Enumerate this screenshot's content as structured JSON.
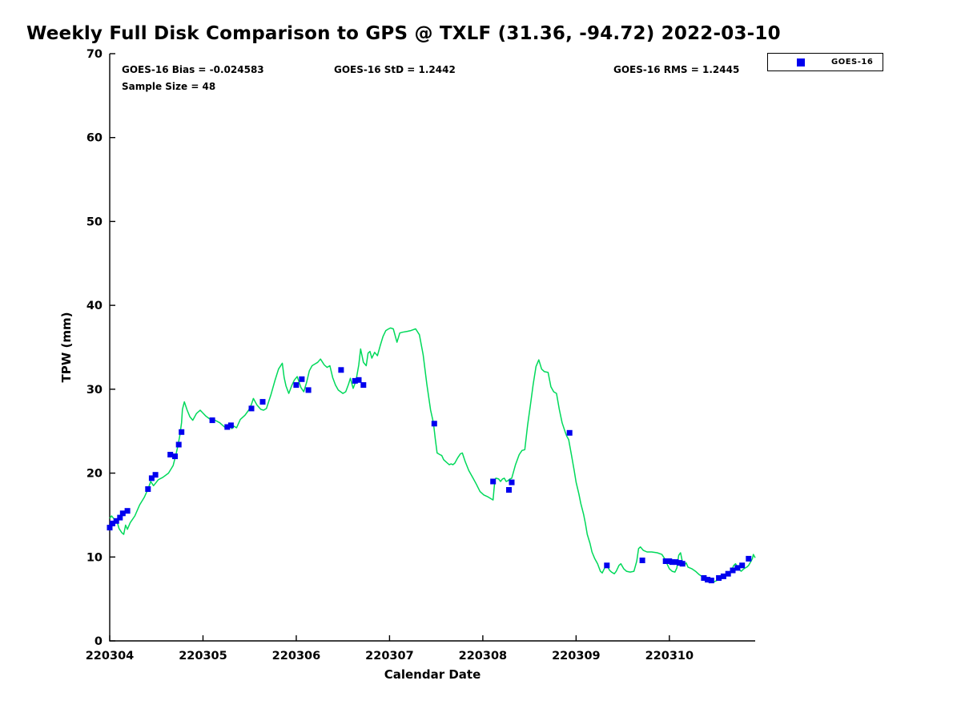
{
  "chart": {
    "stats": {
      "bias_label": "GOES-16 Bias = -0.024583",
      "std_label": "GOES-16 StD = 1.2442",
      "rms_label": "GOES-16 RMS = 1.2445",
      "sample_label": "Sample Size = 48"
    }
  },
  "chart_data": {
    "type": "line",
    "title": "Weekly Full Disk Comparison to GPS @ TXLF (31.36, -94.72) 2022-03-10",
    "xlabel": "Calendar Date",
    "ylabel": "TPW (mm)",
    "x_tick_labels": [
      "220304",
      "220305",
      "220306",
      "220307",
      "220308",
      "220309",
      "220310"
    ],
    "y_ticks": [
      0,
      10,
      20,
      30,
      40,
      50,
      60,
      70
    ],
    "ylim": [
      0,
      70
    ],
    "xlim": [
      0,
      6.92
    ],
    "x_unit": "days since 220304",
    "grid": false,
    "background": "#ffffff",
    "axis_color": "#000000",
    "stats": {
      "goes16_bias": -0.024583,
      "goes16_std": 1.2442,
      "goes16_rms": 1.2445,
      "sample_size": 48
    },
    "legend": {
      "position": "top-right",
      "entries": [
        {
          "label": "GOES-16",
          "marker": "square",
          "color": "#0000EE"
        }
      ]
    },
    "series": [
      {
        "name": "GPS",
        "type": "line",
        "color": "#00D95A",
        "points": [
          [
            0.0,
            14.6
          ],
          [
            0.02,
            14.9
          ],
          [
            0.05,
            14.5
          ],
          [
            0.08,
            14.2
          ],
          [
            0.1,
            13.4
          ],
          [
            0.13,
            12.9
          ],
          [
            0.15,
            12.7
          ],
          [
            0.17,
            13.8
          ],
          [
            0.19,
            13.3
          ],
          [
            0.22,
            14.1
          ],
          [
            0.27,
            14.9
          ],
          [
            0.32,
            16.2
          ],
          [
            0.37,
            17.1
          ],
          [
            0.41,
            18.1
          ],
          [
            0.44,
            19.0
          ],
          [
            0.47,
            18.5
          ],
          [
            0.52,
            19.2
          ],
          [
            0.57,
            19.5
          ],
          [
            0.63,
            20.0
          ],
          [
            0.68,
            20.9
          ],
          [
            0.71,
            22.2
          ],
          [
            0.73,
            23.2
          ],
          [
            0.75,
            24.4
          ],
          [
            0.77,
            26.0
          ],
          [
            0.78,
            27.6
          ],
          [
            0.8,
            28.5
          ],
          [
            0.83,
            27.5
          ],
          [
            0.86,
            26.7
          ],
          [
            0.89,
            26.3
          ],
          [
            0.93,
            27.1
          ],
          [
            0.97,
            27.5
          ],
          [
            1.03,
            26.8
          ],
          [
            1.08,
            26.4
          ],
          [
            1.13,
            26.3
          ],
          [
            1.18,
            26.0
          ],
          [
            1.23,
            25.5
          ],
          [
            1.27,
            25.3
          ],
          [
            1.29,
            25.7
          ],
          [
            1.31,
            25.3
          ],
          [
            1.33,
            25.6
          ],
          [
            1.36,
            25.4
          ],
          [
            1.4,
            26.4
          ],
          [
            1.45,
            26.9
          ],
          [
            1.49,
            27.5
          ],
          [
            1.52,
            28.2
          ],
          [
            1.54,
            28.9
          ],
          [
            1.58,
            28.1
          ],
          [
            1.62,
            27.6
          ],
          [
            1.65,
            27.5
          ],
          [
            1.68,
            27.7
          ],
          [
            1.73,
            29.4
          ],
          [
            1.77,
            31.0
          ],
          [
            1.81,
            32.4
          ],
          [
            1.85,
            33.1
          ],
          [
            1.87,
            31.4
          ],
          [
            1.89,
            30.4
          ],
          [
            1.92,
            29.5
          ],
          [
            1.95,
            30.4
          ],
          [
            1.98,
            31.1
          ],
          [
            2.01,
            31.5
          ],
          [
            2.05,
            30.2
          ],
          [
            2.08,
            29.7
          ],
          [
            2.11,
            30.8
          ],
          [
            2.14,
            32.2
          ],
          [
            2.17,
            32.8
          ],
          [
            2.2,
            33.0
          ],
          [
            2.23,
            33.2
          ],
          [
            2.26,
            33.6
          ],
          [
            2.3,
            32.9
          ],
          [
            2.33,
            32.6
          ],
          [
            2.36,
            32.8
          ],
          [
            2.39,
            31.4
          ],
          [
            2.42,
            30.5
          ],
          [
            2.45,
            29.9
          ],
          [
            2.5,
            29.5
          ],
          [
            2.53,
            29.7
          ],
          [
            2.56,
            30.6
          ],
          [
            2.58,
            31.3
          ],
          [
            2.61,
            30.1
          ],
          [
            2.64,
            31.0
          ],
          [
            2.67,
            32.9
          ],
          [
            2.69,
            34.8
          ],
          [
            2.72,
            33.2
          ],
          [
            2.75,
            32.8
          ],
          [
            2.77,
            34.3
          ],
          [
            2.79,
            34.5
          ],
          [
            2.81,
            33.7
          ],
          [
            2.84,
            34.4
          ],
          [
            2.87,
            34.0
          ],
          [
            2.9,
            35.2
          ],
          [
            2.93,
            36.3
          ],
          [
            2.96,
            37.0
          ],
          [
            2.99,
            37.2
          ],
          [
            3.01,
            37.3
          ],
          [
            3.04,
            37.2
          ],
          [
            3.08,
            35.6
          ],
          [
            3.11,
            36.7
          ],
          [
            3.14,
            36.8
          ],
          [
            3.19,
            36.9
          ],
          [
            3.23,
            37.0
          ],
          [
            3.28,
            37.2
          ],
          [
            3.32,
            36.5
          ],
          [
            3.36,
            34.1
          ],
          [
            3.4,
            30.6
          ],
          [
            3.44,
            27.5
          ],
          [
            3.47,
            26.0
          ],
          [
            3.49,
            24.1
          ],
          [
            3.51,
            22.4
          ],
          [
            3.54,
            22.2
          ],
          [
            3.56,
            22.1
          ],
          [
            3.58,
            21.6
          ],
          [
            3.6,
            21.4
          ],
          [
            3.62,
            21.2
          ],
          [
            3.64,
            21.0
          ],
          [
            3.66,
            21.1
          ],
          [
            3.68,
            21.0
          ],
          [
            3.7,
            21.2
          ],
          [
            3.73,
            21.8
          ],
          [
            3.76,
            22.3
          ],
          [
            3.78,
            22.4
          ],
          [
            3.81,
            21.4
          ],
          [
            3.85,
            20.3
          ],
          [
            3.89,
            19.5
          ],
          [
            3.93,
            18.7
          ],
          [
            3.97,
            17.8
          ],
          [
            4.01,
            17.4
          ],
          [
            4.05,
            17.2
          ],
          [
            4.08,
            17.0
          ],
          [
            4.11,
            16.8
          ],
          [
            4.12,
            18.1
          ],
          [
            4.13,
            19.2
          ],
          [
            4.14,
            19.4
          ],
          [
            4.17,
            19.3
          ],
          [
            4.19,
            19.0
          ],
          [
            4.21,
            19.3
          ],
          [
            4.23,
            19.4
          ],
          [
            4.25,
            19.0
          ],
          [
            4.27,
            19.1
          ],
          [
            4.29,
            19.3
          ],
          [
            4.31,
            19.4
          ],
          [
            4.35,
            21.0
          ],
          [
            4.39,
            22.2
          ],
          [
            4.42,
            22.7
          ],
          [
            4.45,
            22.8
          ],
          [
            4.48,
            25.7
          ],
          [
            4.51,
            28.1
          ],
          [
            4.54,
            30.6
          ],
          [
            4.57,
            32.7
          ],
          [
            4.6,
            33.5
          ],
          [
            4.63,
            32.4
          ],
          [
            4.66,
            32.1
          ],
          [
            4.7,
            32.0
          ],
          [
            4.73,
            30.3
          ],
          [
            4.76,
            29.7
          ],
          [
            4.79,
            29.5
          ],
          [
            4.82,
            27.6
          ],
          [
            4.85,
            26.0
          ],
          [
            4.88,
            25.0
          ],
          [
            4.9,
            24.4
          ],
          [
            4.92,
            24.0
          ],
          [
            4.95,
            22.2
          ],
          [
            4.98,
            20.3
          ],
          [
            5.0,
            18.9
          ],
          [
            5.03,
            17.5
          ],
          [
            5.05,
            16.4
          ],
          [
            5.08,
            15.1
          ],
          [
            5.1,
            14.0
          ],
          [
            5.12,
            12.7
          ],
          [
            5.15,
            11.6
          ],
          [
            5.17,
            10.6
          ],
          [
            5.2,
            9.8
          ],
          [
            5.23,
            9.2
          ],
          [
            5.26,
            8.3
          ],
          [
            5.28,
            8.1
          ],
          [
            5.31,
            8.8
          ],
          [
            5.33,
            9.0
          ],
          [
            5.36,
            8.4
          ],
          [
            5.38,
            8.2
          ],
          [
            5.41,
            8.0
          ],
          [
            5.43,
            8.3
          ],
          [
            5.46,
            9.0
          ],
          [
            5.48,
            9.2
          ],
          [
            5.51,
            8.6
          ],
          [
            5.54,
            8.3
          ],
          [
            5.58,
            8.2
          ],
          [
            5.62,
            8.3
          ],
          [
            5.65,
            9.5
          ],
          [
            5.67,
            11.0
          ],
          [
            5.69,
            11.2
          ],
          [
            5.72,
            10.8
          ],
          [
            5.76,
            10.6
          ],
          [
            5.81,
            10.6
          ],
          [
            5.87,
            10.5
          ],
          [
            5.92,
            10.3
          ],
          [
            5.95,
            9.8
          ],
          [
            5.97,
            9.3
          ],
          [
            6.0,
            8.6
          ],
          [
            6.03,
            8.3
          ],
          [
            6.06,
            8.2
          ],
          [
            6.08,
            8.7
          ],
          [
            6.1,
            10.2
          ],
          [
            6.12,
            10.5
          ],
          [
            6.14,
            9.4
          ],
          [
            6.16,
            9.0
          ],
          [
            6.18,
            9.3
          ],
          [
            6.2,
            8.8
          ],
          [
            6.24,
            8.6
          ],
          [
            6.28,
            8.3
          ],
          [
            6.32,
            7.9
          ],
          [
            6.36,
            7.6
          ],
          [
            6.4,
            7.3
          ],
          [
            6.44,
            7.1
          ],
          [
            6.47,
            7.0
          ],
          [
            6.51,
            7.2
          ],
          [
            6.55,
            7.4
          ],
          [
            6.59,
            7.6
          ],
          [
            6.62,
            7.9
          ],
          [
            6.66,
            8.2
          ],
          [
            6.69,
            9.0
          ],
          [
            6.71,
            9.2
          ],
          [
            6.74,
            8.6
          ],
          [
            6.77,
            8.3
          ],
          [
            6.8,
            8.6
          ],
          [
            6.83,
            8.8
          ],
          [
            6.85,
            9.0
          ],
          [
            6.87,
            9.4
          ],
          [
            6.89,
            9.8
          ],
          [
            6.9,
            10.3
          ],
          [
            6.92,
            9.9
          ]
        ]
      },
      {
        "name": "GOES-16",
        "type": "scatter",
        "color": "#0000EE",
        "marker": "square",
        "points": [
          [
            0.0,
            13.5
          ],
          [
            0.03,
            14.0
          ],
          [
            0.07,
            14.3
          ],
          [
            0.11,
            14.7
          ],
          [
            0.14,
            15.2
          ],
          [
            0.19,
            15.5
          ],
          [
            0.41,
            18.1
          ],
          [
            0.45,
            19.4
          ],
          [
            0.49,
            19.8
          ],
          [
            0.65,
            22.2
          ],
          [
            0.7,
            22.0
          ],
          [
            0.74,
            23.4
          ],
          [
            0.77,
            24.9
          ],
          [
            1.1,
            26.3
          ],
          [
            1.26,
            25.5
          ],
          [
            1.3,
            25.7
          ],
          [
            1.52,
            27.7
          ],
          [
            1.64,
            28.5
          ],
          [
            2.0,
            30.5
          ],
          [
            2.06,
            31.2
          ],
          [
            2.13,
            29.9
          ],
          [
            2.48,
            32.3
          ],
          [
            2.63,
            31.0
          ],
          [
            2.67,
            31.1
          ],
          [
            2.72,
            30.5
          ],
          [
            3.48,
            25.9
          ],
          [
            4.11,
            19.0
          ],
          [
            4.28,
            18.0
          ],
          [
            4.31,
            18.9
          ],
          [
            4.93,
            24.8
          ],
          [
            5.33,
            9.0
          ],
          [
            5.71,
            9.6
          ],
          [
            5.96,
            9.5
          ],
          [
            6.0,
            9.5
          ],
          [
            6.03,
            9.4
          ],
          [
            6.07,
            9.4
          ],
          [
            6.11,
            9.3
          ],
          [
            6.14,
            9.2
          ],
          [
            6.37,
            7.5
          ],
          [
            6.41,
            7.3
          ],
          [
            6.45,
            7.2
          ],
          [
            6.53,
            7.5
          ],
          [
            6.58,
            7.7
          ],
          [
            6.63,
            8.0
          ],
          [
            6.68,
            8.4
          ],
          [
            6.73,
            8.7
          ],
          [
            6.78,
            9.0
          ],
          [
            6.85,
            9.8
          ]
        ]
      }
    ]
  }
}
